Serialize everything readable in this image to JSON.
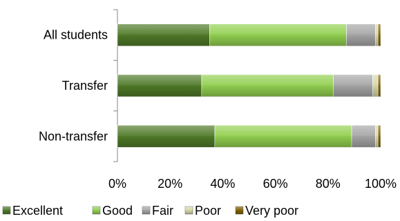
{
  "chart_data": {
    "type": "bar",
    "orientation": "horizontal",
    "stacked": "percent",
    "categories": [
      "All students",
      "Transfer",
      "Non-transfer"
    ],
    "series": [
      {
        "name": "Excellent",
        "values": [
          35,
          32,
          37
        ],
        "color": "#4f7a28"
      },
      {
        "name": "Good",
        "values": [
          52,
          50,
          52
        ],
        "color": "#92d050"
      },
      {
        "name": "Fair",
        "values": [
          11,
          15,
          9
        ],
        "color": "#a6a6a6"
      },
      {
        "name": "Poor",
        "values": [
          1,
          2,
          1
        ],
        "color": "#d8d8a8"
      },
      {
        "name": "Very poor",
        "values": [
          1,
          1,
          1
        ],
        "color": "#7f6000"
      }
    ],
    "x_ticks": [
      "0%",
      "20%",
      "40%",
      "60%",
      "80%",
      "100%"
    ],
    "xlim": [
      0,
      100
    ],
    "grid": false,
    "legend_position": "bottom"
  }
}
